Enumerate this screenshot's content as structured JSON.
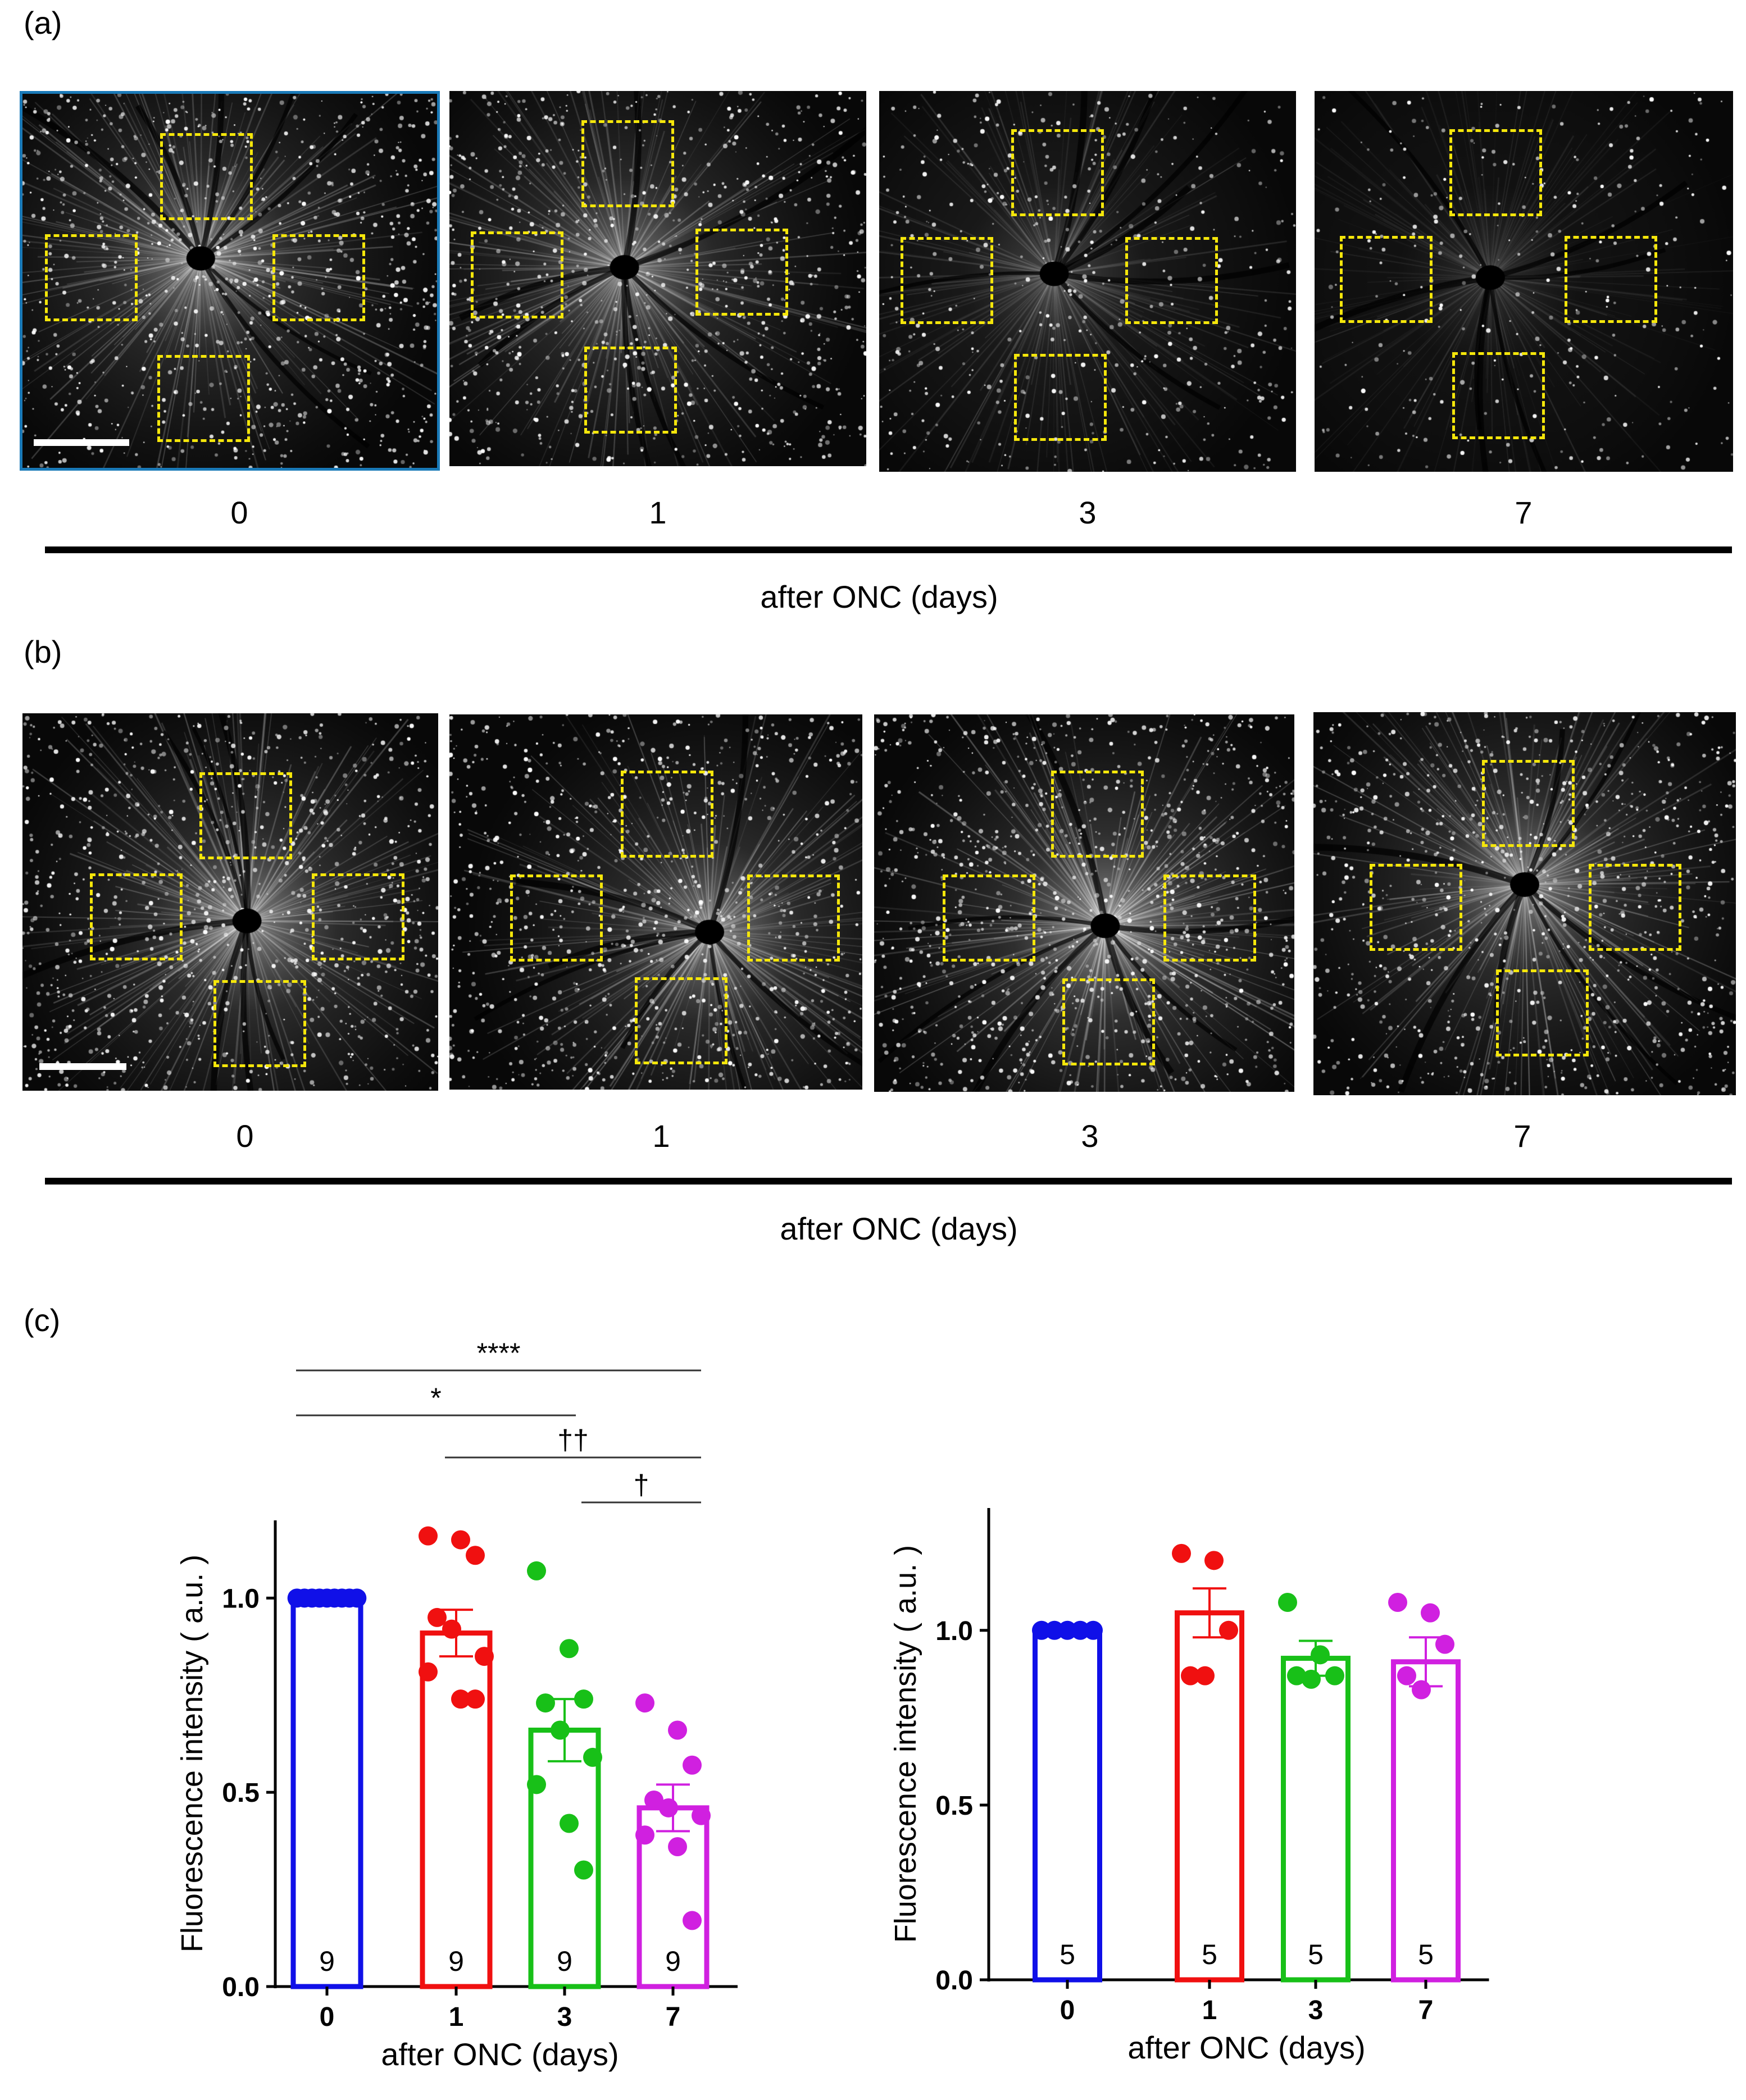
{
  "panels": {
    "a": {
      "label": "(a)",
      "days": [
        "0",
        "1",
        "3",
        "7"
      ],
      "axis_caption": "after ONC (days)"
    },
    "b": {
      "label": "(b)",
      "days": [
        "0",
        "1",
        "3",
        "7"
      ],
      "axis_caption": "after ONC (days)"
    },
    "c": {
      "label": "(c)"
    }
  },
  "colors": {
    "day0": "#1010e8",
    "day1": "#f01010",
    "day3": "#18c018",
    "day7": "#d020e0",
    "roi_box": "#f5e60a"
  },
  "chart_data": [
    {
      "type": "bar",
      "categories": [
        "0",
        "1",
        "3",
        "7"
      ],
      "values": [
        1.0,
        0.91,
        0.66,
        0.46
      ],
      "sem": [
        0.0,
        0.06,
        0.08,
        0.06
      ],
      "n_labels": [
        "9",
        "9",
        "9",
        "9"
      ],
      "points": [
        [
          1.0,
          1.0,
          1.0,
          1.0,
          1.0,
          1.0,
          1.0,
          1.0,
          1.0
        ],
        [
          1.16,
          1.15,
          1.11,
          0.95,
          0.92,
          0.85,
          0.81,
          0.74,
          0.74
        ],
        [
          1.07,
          0.87,
          0.74,
          0.73,
          0.66,
          0.59,
          0.52,
          0.42,
          0.3
        ],
        [
          0.73,
          0.66,
          0.57,
          0.48,
          0.46,
          0.44,
          0.39,
          0.36,
          0.17
        ]
      ],
      "ylabel": "Fluorescence intensity ( a.u. )",
      "xlabel": "after ONC (days)",
      "ylim": [
        0,
        1.2
      ],
      "yticks": [
        "0.0",
        "0.5",
        "1.0"
      ],
      "significance": [
        {
          "from": "0",
          "to": "7",
          "label": "****"
        },
        {
          "from": "0",
          "to": "3",
          "label": "*"
        },
        {
          "from": "1",
          "to": "7",
          "label": "††"
        },
        {
          "from": "3",
          "to": "7",
          "label": "†"
        }
      ]
    },
    {
      "type": "bar",
      "categories": [
        "0",
        "1",
        "3",
        "7"
      ],
      "values": [
        1.0,
        1.05,
        0.92,
        0.91
      ],
      "sem": [
        0.0,
        0.07,
        0.05,
        0.07
      ],
      "n_labels": [
        "5",
        "5",
        "5",
        "5"
      ],
      "points": [
        [
          1.0,
          1.0,
          1.0,
          1.0,
          1.0
        ],
        [
          1.22,
          1.2,
          1.0,
          0.87,
          0.87
        ],
        [
          1.08,
          0.93,
          0.87,
          0.87,
          0.86
        ],
        [
          1.08,
          1.05,
          0.96,
          0.87,
          0.83
        ]
      ],
      "ylabel": "Fluorescence intensity ( a.u. )",
      "xlabel": "after ONC (days)",
      "ylim": [
        0,
        1.35
      ],
      "yticks": [
        "0.0",
        "0.5",
        "1.0"
      ]
    }
  ]
}
